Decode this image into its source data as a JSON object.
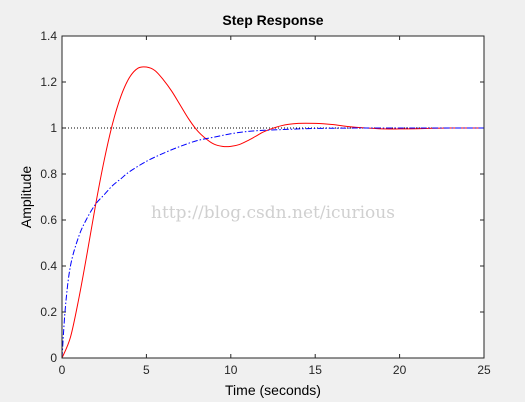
{
  "chart_data": {
    "type": "line",
    "title": "Step Response",
    "xlabel": "Time (seconds)",
    "ylabel": "Amplitude",
    "xlim": [
      0,
      25
    ],
    "ylim": [
      0,
      1.4
    ],
    "xticks": [
      0,
      5,
      10,
      15,
      20,
      25
    ],
    "yticks": [
      0,
      0.2,
      0.4,
      0.6,
      0.8,
      1,
      1.2,
      1.4
    ],
    "grid": false,
    "reference_line": {
      "y": 1,
      "style": "dotted",
      "color": "#000000"
    },
    "series": [
      {
        "color": "#ff0000",
        "style": "solid",
        "x": [
          0,
          0.5,
          1,
          1.5,
          2,
          2.5,
          3,
          3.5,
          4,
          4.5,
          5,
          5.5,
          6,
          6.5,
          7,
          7.5,
          8,
          8.5,
          9,
          9.5,
          10,
          10.5,
          11,
          11.5,
          12,
          13,
          14,
          15,
          16,
          17,
          18,
          19,
          20,
          21,
          22,
          23,
          24,
          25
        ],
        "y": [
          0,
          0.09,
          0.26,
          0.46,
          0.67,
          0.86,
          1.02,
          1.14,
          1.22,
          1.26,
          1.265,
          1.25,
          1.21,
          1.16,
          1.1,
          1.04,
          0.99,
          0.955,
          0.93,
          0.92,
          0.92,
          0.928,
          0.945,
          0.965,
          0.985,
          1.01,
          1.02,
          1.02,
          1.015,
          1.006,
          1.0,
          0.996,
          0.996,
          0.997,
          0.999,
          1.0,
          1.0,
          1.0
        ]
      },
      {
        "color": "#0000ff",
        "style": "dashdot",
        "x": [
          0,
          0.2,
          0.5,
          1,
          1.5,
          2,
          2.5,
          3,
          3.5,
          4,
          5,
          6,
          7,
          8,
          9,
          10,
          11,
          12,
          13,
          14,
          15,
          16,
          18,
          20,
          22,
          25
        ],
        "y": [
          0,
          0.22,
          0.4,
          0.53,
          0.61,
          0.67,
          0.71,
          0.75,
          0.78,
          0.81,
          0.855,
          0.89,
          0.92,
          0.945,
          0.96,
          0.975,
          0.985,
          0.99,
          0.993,
          0.996,
          0.998,
          0.999,
          1.0,
          1.0,
          1.0,
          1.0
        ]
      }
    ],
    "watermark": "http://blog.csdn.net/icurious"
  }
}
